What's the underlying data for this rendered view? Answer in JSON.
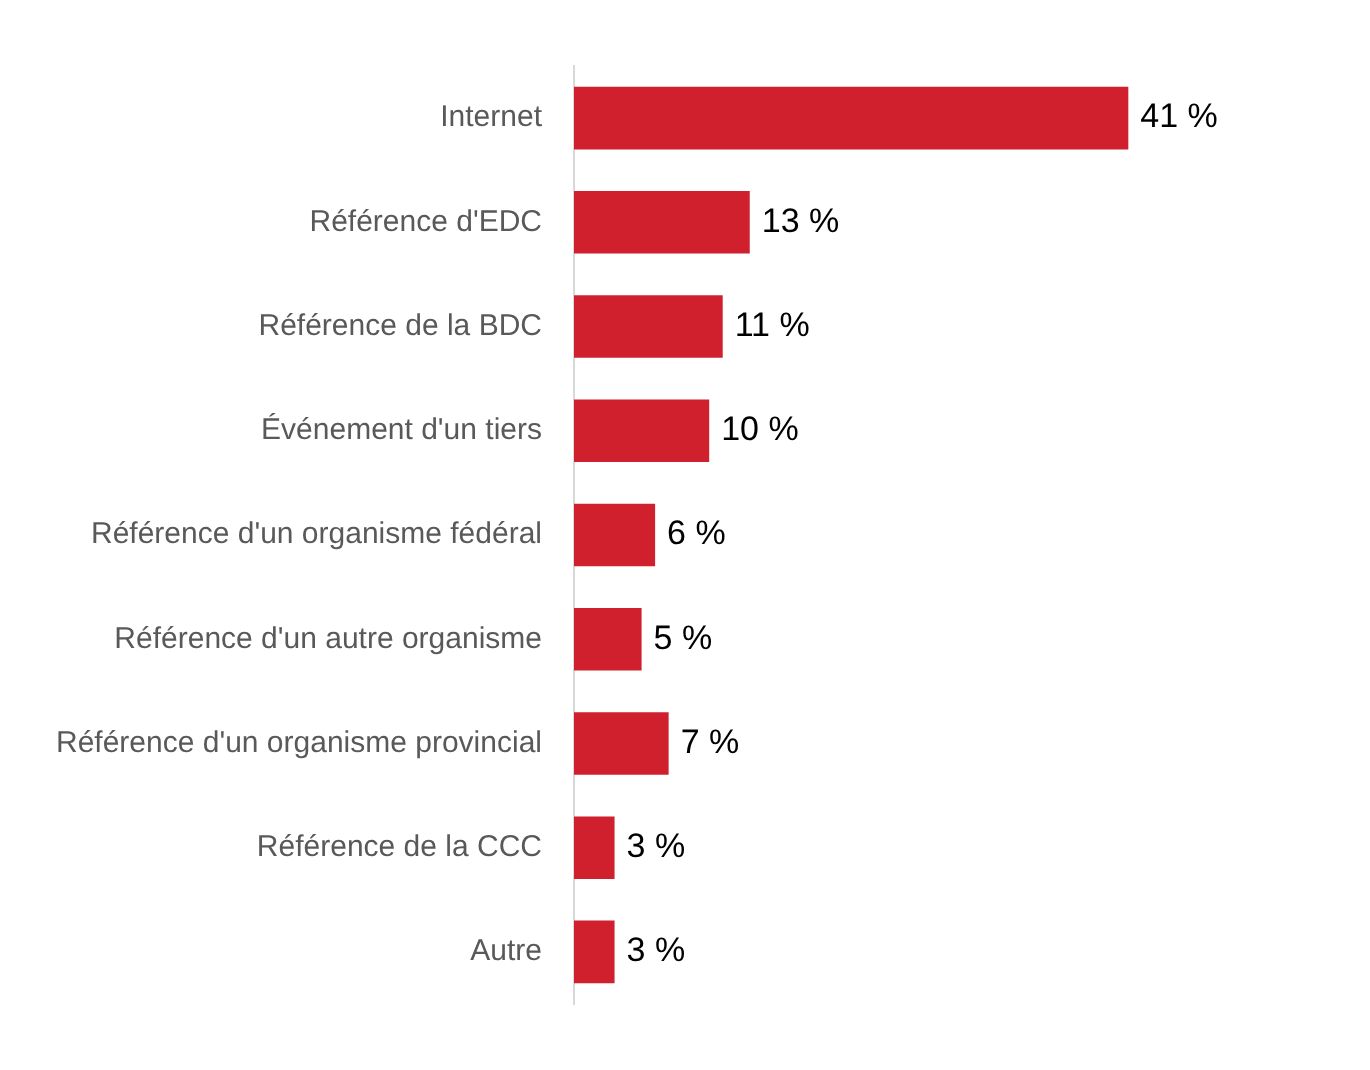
{
  "chart_data": {
    "type": "bar",
    "orientation": "horizontal",
    "categories": [
      "Internet",
      "Référence d'EDC",
      "Référence de la BDC",
      "Événement d'un tiers",
      "Référence d'un organisme fédéral",
      "Référence d'un autre organisme",
      "Référence d'un organisme provincial",
      "Référence de la CCC",
      "Autre"
    ],
    "values": [
      41,
      13,
      11,
      10,
      6,
      5,
      7,
      3,
      3
    ],
    "value_labels": [
      "41 %",
      "13 %",
      "11 %",
      "10 %",
      "6 %",
      "5 %",
      "7 %",
      "3 %",
      "3 %"
    ],
    "color": "#d0202e"
  }
}
